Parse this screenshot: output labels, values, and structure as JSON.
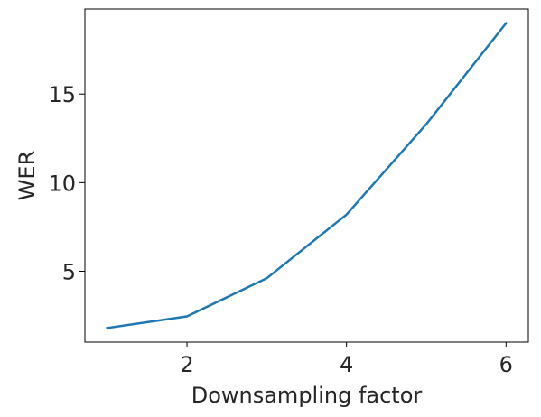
{
  "chart_data": {
    "type": "line",
    "title": "",
    "xlabel": "Downsampling factor",
    "ylabel": "WER",
    "xlim": [
      0.72,
      6.28
    ],
    "ylim": [
      1.0,
      19.8
    ],
    "xticks": [
      2,
      4,
      6
    ],
    "yticks": [
      5,
      10,
      15
    ],
    "grid": false,
    "legend": "none",
    "series": [
      {
        "color": "#1f77b4",
        "x": [
          1,
          2,
          3,
          4,
          5,
          6
        ],
        "y": [
          1.8,
          2.45,
          4.6,
          8.2,
          13.3,
          19.0
        ]
      }
    ]
  }
}
